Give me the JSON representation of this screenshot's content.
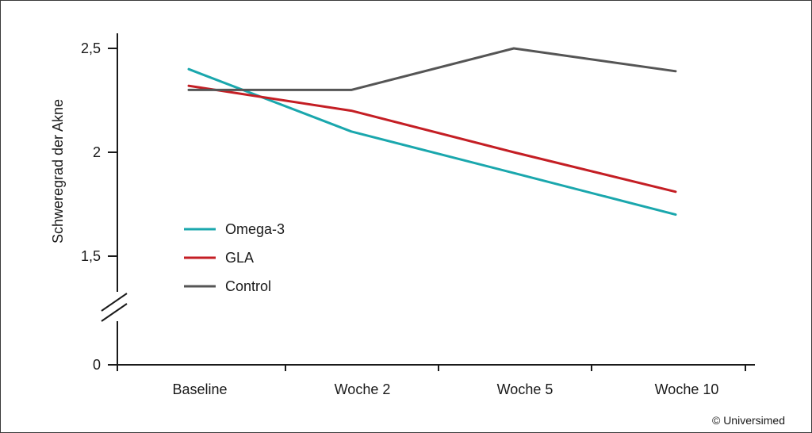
{
  "chart_data": {
    "type": "line",
    "title": "",
    "xlabel": "",
    "ylabel": "Schweregrad der Akne",
    "categories": [
      "Baseline",
      "Woche 2",
      "Woche 5",
      "Woche 10"
    ],
    "yticks": [
      {
        "value": 0,
        "label": "0"
      },
      {
        "value": 1.5,
        "label": "1,5"
      },
      {
        "value": 2,
        "label": "2"
      },
      {
        "value": 2.5,
        "label": "2,5"
      }
    ],
    "ylim": [
      1.4,
      2.6
    ],
    "axis_break": true,
    "grid": false,
    "legend_position": "left",
    "series": [
      {
        "name": "Omega-3",
        "color": "#1aa7ad",
        "values": [
          2.4,
          2.1,
          1.9,
          1.7
        ]
      },
      {
        "name": "GLA",
        "color": "#c41e24",
        "values": [
          2.32,
          2.2,
          2.0,
          1.81
        ]
      },
      {
        "name": "Control",
        "color": "#555555",
        "values": [
          2.3,
          2.3,
          2.5,
          2.39
        ]
      }
    ]
  },
  "copyright": "© Universimed"
}
